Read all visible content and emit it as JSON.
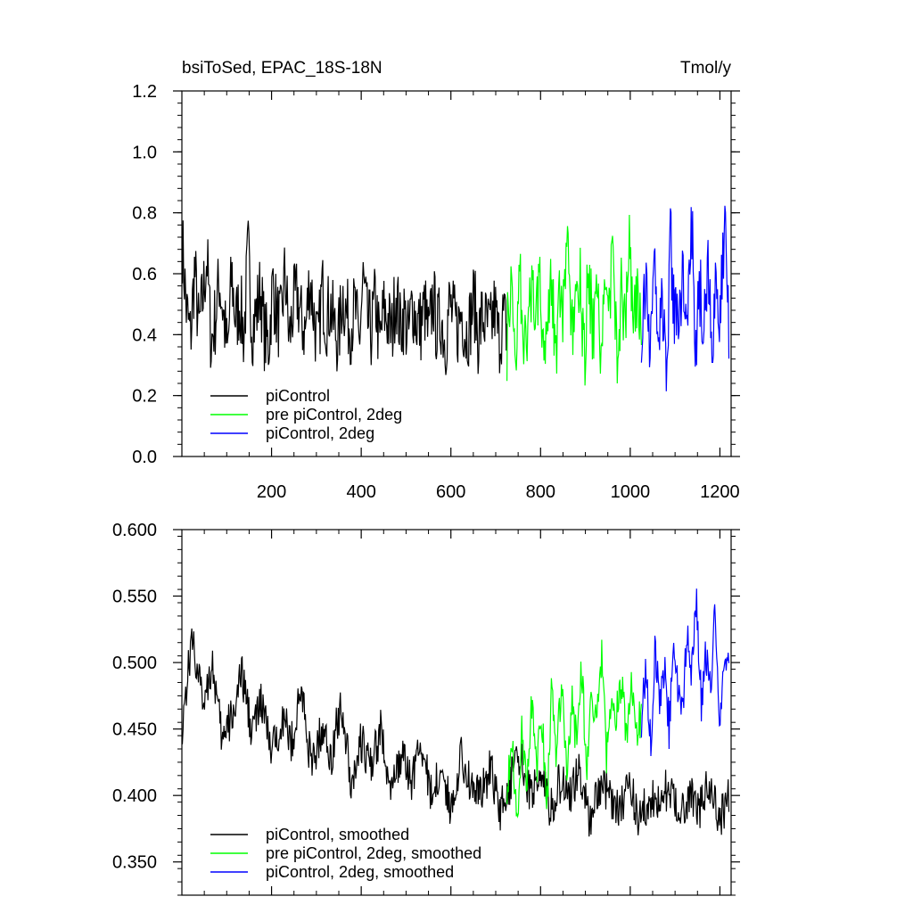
{
  "figure": {
    "title_left": "bsiToSed, EPAC_18S-18N",
    "title_right": "Tmol/y"
  },
  "chart_data": [
    {
      "type": "line",
      "title": "bsiToSed, EPAC_18S-18N",
      "units": "Tmol/y",
      "xlim": [
        0,
        1225
      ],
      "ylim": [
        0.0,
        1.2
      ],
      "grid": false,
      "legend_position": "bottom-left",
      "x_ticks": [
        200,
        400,
        600,
        800,
        1000,
        1200
      ],
      "x_tick_labels": [
        "200",
        "400",
        "600",
        "800",
        "1000",
        "1200"
      ],
      "y_ticks": [
        0.0,
        0.2,
        0.4,
        0.6,
        0.8,
        1.0,
        1.2
      ],
      "y_tick_labels": [
        "0.0",
        "0.2",
        "0.4",
        "0.6",
        "0.8",
        "1.0",
        "1.2"
      ],
      "series": [
        {
          "name": "piControl",
          "color": "#000000",
          "x_range": [
            1,
            725
          ],
          "values": [
            0.7,
            0.48,
            0.39,
            0.62,
            0.41,
            0.52,
            0.66,
            0.37,
            0.45,
            0.58,
            0.47,
            0.33,
            0.6,
            0.44,
            0.51,
            0.39,
            0.68,
            0.42,
            0.47,
            0.55,
            0.4,
            0.36,
            0.57,
            0.46,
            0.43,
            0.61,
            0.38,
            0.49,
            0.53,
            0.44,
            0.41,
            0.59,
            0.47,
            0.35,
            0.56,
            0.45,
            0.5,
            0.42,
            0.38,
            0.54,
            0.46,
            0.43,
            0.49,
            0.37,
            0.58,
            0.44,
            0.41,
            0.52,
            0.36,
            0.48,
            0.45,
            0.4,
            0.55,
            0.42,
            0.47,
            0.39,
            0.51,
            0.44,
            0.43,
            0.49,
            0.38,
            0.53,
            0.41,
            0.46,
            0.37,
            0.5,
            0.45,
            0.42,
            0.48,
            0.4,
            0.44,
            0.52,
            0.39,
            0.46,
            0.43,
            0.41,
            0.49,
            0.38,
            0.45,
            0.42
          ]
        },
        {
          "name": "pre piControl, 2deg",
          "color": "#00ff00",
          "x_range": [
            725,
            1025
          ],
          "values": [
            0.38,
            0.55,
            0.31,
            0.62,
            0.45,
            0.28,
            0.58,
            0.42,
            0.66,
            0.35,
            0.49,
            0.61,
            0.33,
            0.52,
            0.44,
            0.7,
            0.39,
            0.47,
            0.57,
            0.3,
            0.63,
            0.41,
            0.5,
            0.36,
            0.59,
            0.46,
            0.68,
            0.34,
            0.53,
            0.42,
            0.74,
            0.4,
            0.56,
            0.45
          ]
        },
        {
          "name": "piControl, 2deg",
          "color": "#0000ff",
          "x_range": [
            1025,
            1220
          ],
          "values": [
            0.44,
            0.58,
            0.32,
            0.66,
            0.41,
            0.52,
            0.29,
            0.71,
            0.45,
            0.38,
            0.63,
            0.49,
            0.82,
            0.36,
            0.55,
            0.43,
            0.67,
            0.31,
            0.59,
            0.47,
            0.74,
            0.4
          ]
        }
      ]
    },
    {
      "type": "line",
      "xlim": [
        0,
        1225
      ],
      "ylim": [
        0.325,
        0.6
      ],
      "grid": false,
      "legend_position": "bottom-left",
      "x_ticks": [
        200,
        400,
        600,
        800,
        1000,
        1200
      ],
      "y_ticks": [
        0.35,
        0.4,
        0.45,
        0.5,
        0.55,
        0.6
      ],
      "y_tick_labels": [
        "0.350",
        "0.400",
        "0.450",
        "0.500",
        "0.550",
        "0.600"
      ],
      "series": [
        {
          "name": "piControl, smoothed",
          "color": "#000000",
          "x_range": [
            1,
            1220
          ],
          "values": [
            0.455,
            0.52,
            0.47,
            0.5,
            0.44,
            0.46,
            0.49,
            0.45,
            0.47,
            0.43,
            0.46,
            0.44,
            0.48,
            0.42,
            0.45,
            0.43,
            0.47,
            0.41,
            0.44,
            0.42,
            0.45,
            0.4,
            0.43,
            0.41,
            0.44,
            0.4,
            0.42,
            0.39,
            0.43,
            0.41,
            0.4,
            0.42,
            0.39,
            0.41,
            0.43,
            0.4,
            0.42,
            0.39,
            0.41,
            0.4,
            0.42,
            0.38,
            0.41,
            0.4,
            0.39,
            0.41,
            0.38,
            0.4,
            0.39,
            0.41,
            0.38,
            0.4,
            0.39,
            0.41,
            0.38,
            0.4
          ]
        },
        {
          "name": "pre piControl, 2deg, smoothed",
          "color": "#00ff00",
          "x_range": [
            725,
            1025
          ],
          "values": [
            0.41,
            0.44,
            0.38,
            0.45,
            0.4,
            0.47,
            0.42,
            0.46,
            0.39,
            0.48,
            0.43,
            0.49,
            0.41,
            0.47,
            0.44,
            0.5,
            0.42,
            0.48,
            0.45,
            0.51,
            0.43,
            0.47,
            0.46,
            0.49,
            0.44,
            0.48,
            0.45,
            0.46
          ]
        },
        {
          "name": "piControl, 2deg, smoothed",
          "color": "#0000ff",
          "x_range": [
            1025,
            1220
          ],
          "values": [
            0.46,
            0.49,
            0.44,
            0.51,
            0.47,
            0.5,
            0.45,
            0.52,
            0.48,
            0.46,
            0.53,
            0.49,
            0.55,
            0.47,
            0.51,
            0.48,
            0.54,
            0.46,
            0.5,
            0.49
          ]
        }
      ]
    }
  ]
}
